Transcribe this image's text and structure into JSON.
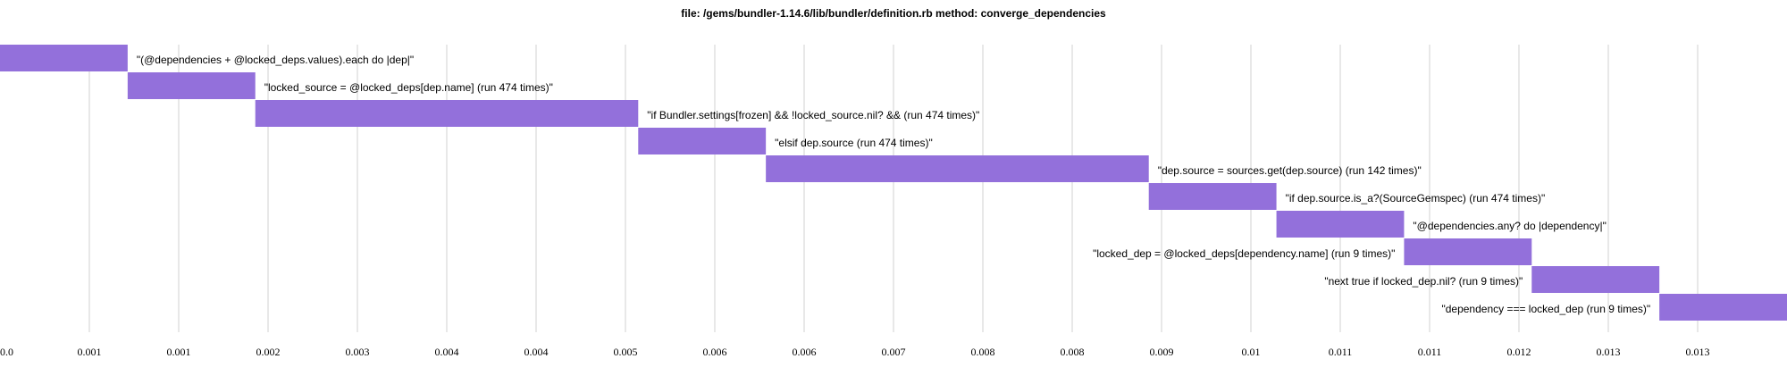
{
  "chart_data": {
    "type": "waterfall",
    "title": "file: /gems/bundler-1.14.6/lib/bundler/definition.rb method: converge_dependencies",
    "categories": [
      "\"(@dependencies + @locked_deps.values).each do |dep|\"",
      "\"locked_source = @locked_deps[dep.name] (run 474 times)\"",
      "\"if Bundler.settings[frozen] && !locked_source.nil? && (run 474 times)\"",
      "\"elsif dep.source (run 474 times)\"",
      "\"dep.source = sources.get(dep.source) (run 142 times)\"",
      "\"if dep.source.is_a?(SourceGemspec) (run 474 times)\"",
      "\"@dependencies.any? do |dependency|\"",
      "\"locked_dep = @locked_deps[dependency.name] (run 9 times)\"",
      "\"next true if locked_dep.nil? (run 9 times)\"",
      "\"dependency === locked_dep (run 9 times)\""
    ],
    "values": [
      0.001,
      0.001,
      0.003,
      0.001,
      0.003,
      0.001,
      0.001,
      0.001,
      0.001,
      0.001
    ],
    "color": "#9370db",
    "xlim": [
      0,
      0.014
    ],
    "xticks": [
      {
        "value": 0,
        "label": "0.0"
      },
      {
        "value": 0.0007,
        "label": "0.001"
      },
      {
        "value": 0.0014,
        "label": "0.001"
      },
      {
        "value": 0.0021,
        "label": "0.002"
      },
      {
        "value": 0.0028,
        "label": "0.003"
      },
      {
        "value": 0.0035,
        "label": "0.004"
      },
      {
        "value": 0.0042,
        "label": "0.004"
      },
      {
        "value": 0.0049,
        "label": "0.005"
      },
      {
        "value": 0.0056,
        "label": "0.006"
      },
      {
        "value": 0.0063,
        "label": "0.006"
      },
      {
        "value": 0.007,
        "label": "0.007"
      },
      {
        "value": 0.0077,
        "label": "0.008"
      },
      {
        "value": 0.0084,
        "label": "0.008"
      },
      {
        "value": 0.0091,
        "label": "0.009"
      },
      {
        "value": 0.0098,
        "label": "0.01"
      },
      {
        "value": 0.0105,
        "label": "0.011"
      },
      {
        "value": 0.0112,
        "label": "0.011"
      },
      {
        "value": 0.0119,
        "label": "0.012"
      },
      {
        "value": 0.0126,
        "label": "0.013"
      },
      {
        "value": 0.0133,
        "label": "0.013"
      }
    ],
    "grid": true
  }
}
